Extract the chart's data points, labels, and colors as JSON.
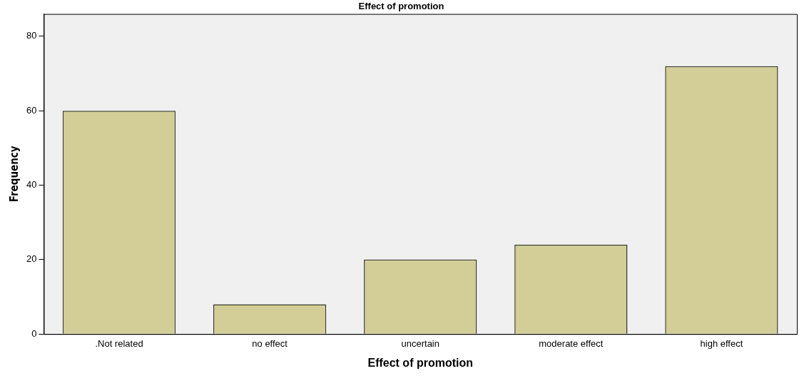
{
  "chart_data": {
    "type": "bar",
    "title": "Effect of promotion",
    "xlabel": "Effect of promotion",
    "ylabel": "Frequency",
    "categories": [
      ".Not related",
      "no effect",
      "uncertain",
      "moderate effect",
      "high effect"
    ],
    "values": [
      60,
      8,
      20,
      24,
      72
    ],
    "color": "#d3ce97",
    "ylim": [
      0,
      86
    ],
    "yticks": [
      0,
      20,
      40,
      60,
      80
    ],
    "grid": false,
    "legend": false
  }
}
